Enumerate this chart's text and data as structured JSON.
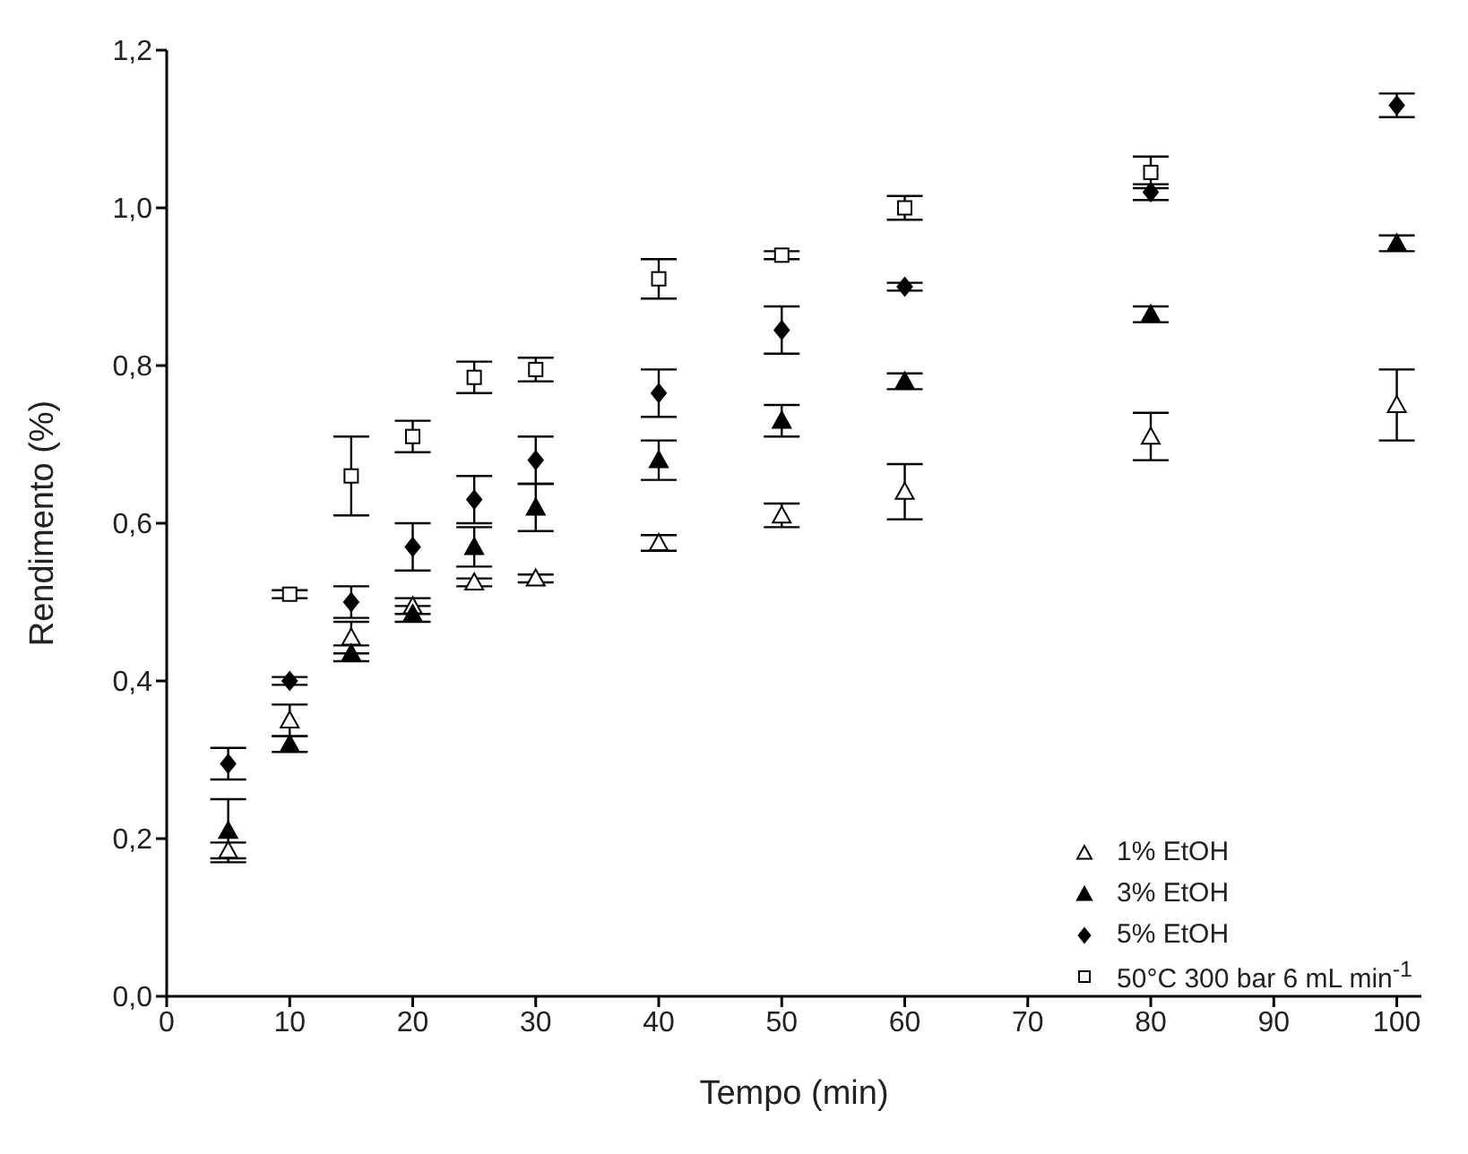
{
  "chart_data": {
    "type": "scatter",
    "xlabel": "Tempo (min)",
    "ylabel": "Rendimento (%)",
    "xlim": [
      0,
      102
    ],
    "ylim": [
      0,
      1.2
    ],
    "xticks": [
      0,
      10,
      20,
      30,
      40,
      50,
      60,
      70,
      80,
      90,
      100
    ],
    "yticks": [
      {
        "value": 0,
        "label": "0,0"
      },
      {
        "value": 0.2,
        "label": "0,2"
      },
      {
        "value": 0.4,
        "label": "0,4"
      },
      {
        "value": 0.6,
        "label": "0,6"
      },
      {
        "value": 0.8,
        "label": "0,8"
      },
      {
        "value": 1.0,
        "label": "1,0"
      },
      {
        "value": 1.2,
        "label": "1,2"
      }
    ],
    "grid": false,
    "legend": "bottom right",
    "series": [
      {
        "name": "1% EtOH",
        "color": "#ffffff",
        "marker": "triangle",
        "x": [
          5,
          10,
          15,
          20,
          25,
          30,
          40,
          50,
          60,
          80,
          100
        ],
        "values": [
          0.185,
          0.35,
          0.455,
          0.495,
          0.525,
          0.53,
          0.575,
          0.61,
          0.64,
          0.71,
          0.75
        ],
        "errors": [
          0.01,
          0.02,
          0.02,
          0.01,
          0.005,
          0.005,
          0.01,
          0.015,
          0.035,
          0.03,
          0.045
        ]
      },
      {
        "name": "3% EtOH",
        "color": "#000000",
        "marker": "triangle",
        "x": [
          5,
          10,
          15,
          20,
          25,
          30,
          40,
          50,
          60,
          80,
          100
        ],
        "values": [
          0.21,
          0.32,
          0.435,
          0.485,
          0.57,
          0.62,
          0.68,
          0.73,
          0.78,
          0.865,
          0.955
        ],
        "errors": [
          0.04,
          0.01,
          0.01,
          0.01,
          0.025,
          0.03,
          0.025,
          0.02,
          0.01,
          0.01,
          0.01
        ]
      },
      {
        "name": "5% EtOH",
        "color": "#000000",
        "marker": "diamond",
        "x": [
          5,
          10,
          15,
          20,
          25,
          30,
          40,
          50,
          60,
          80,
          100
        ],
        "values": [
          0.295,
          0.4,
          0.5,
          0.57,
          0.63,
          0.68,
          0.765,
          0.845,
          0.9,
          1.02,
          1.13
        ],
        "errors": [
          0.02,
          0.005,
          0.02,
          0.03,
          0.03,
          0.03,
          0.03,
          0.03,
          0.005,
          0.01,
          0.015
        ]
      },
      {
        "name": "50°C 300 bar 6 mL min$^{-1}$",
        "color": "#ffffff",
        "marker": "square",
        "x": [
          10,
          15,
          20,
          25,
          30,
          40,
          50,
          60,
          80
        ],
        "values": [
          0.51,
          0.66,
          0.71,
          0.785,
          0.795,
          0.91,
          0.94,
          1.0,
          1.045
        ],
        "errors": [
          0.005,
          0.05,
          0.02,
          0.02,
          0.015,
          0.025,
          0.005,
          0.015,
          0.02
        ]
      }
    ]
  }
}
